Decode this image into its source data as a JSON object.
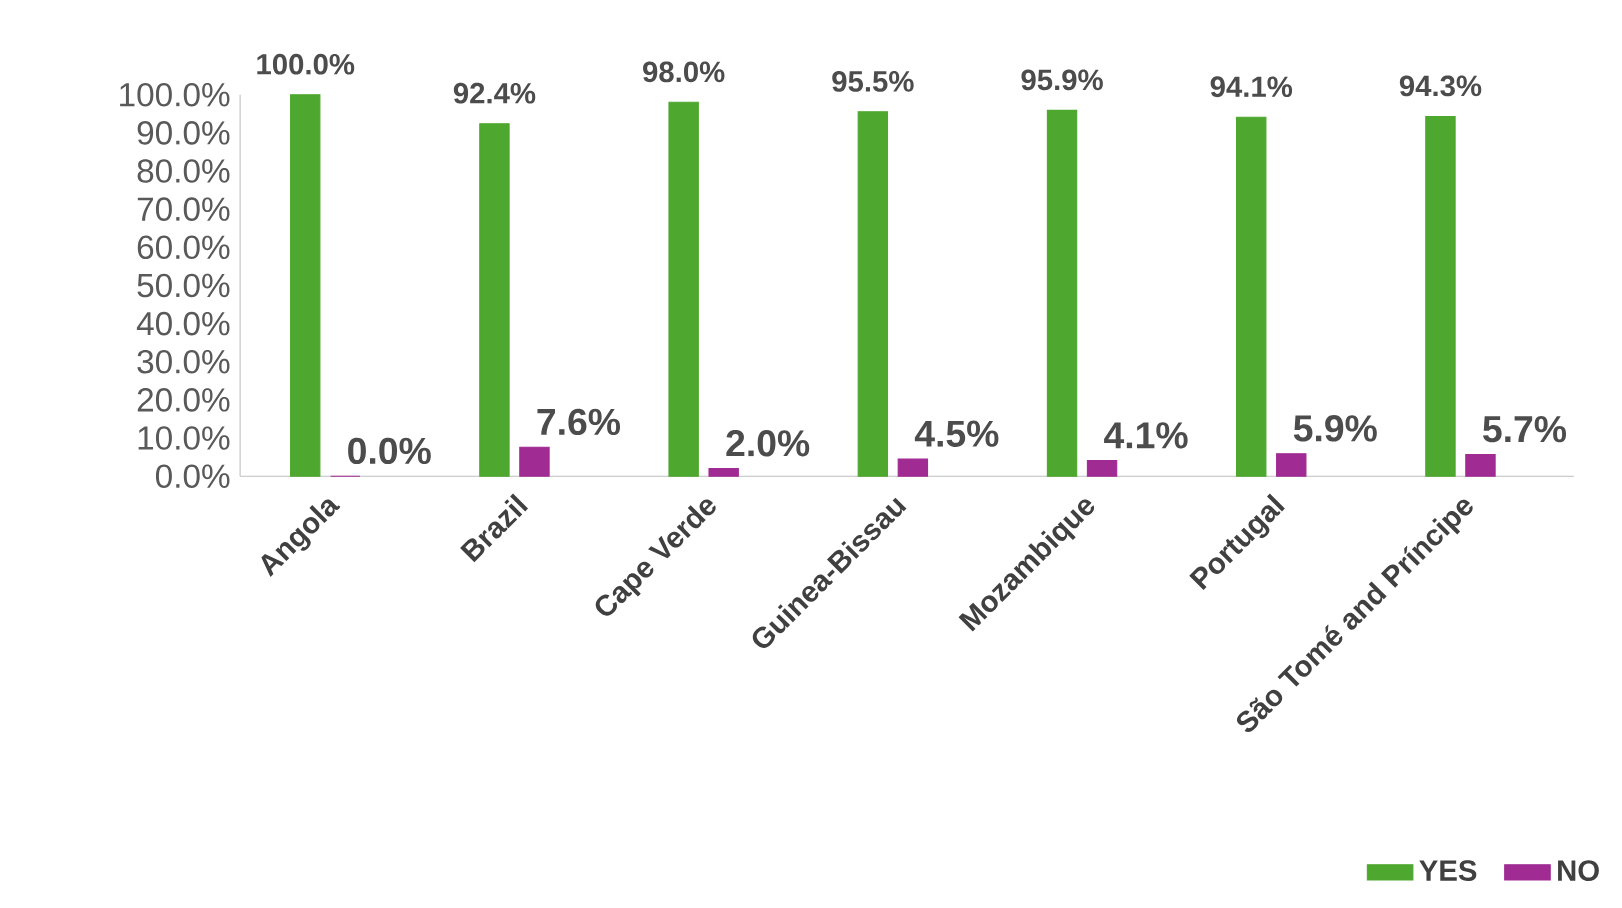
{
  "chart_data": {
    "type": "bar",
    "categories": [
      "Angola",
      "Brazil",
      "Cape Verde",
      "Guinea-Bissau",
      "Mozambique",
      "Portugal",
      "São Tomé and Príncipe"
    ],
    "series": [
      {
        "name": "YES",
        "color": "#4ea72e",
        "values": [
          100,
          92.4,
          98,
          95.5,
          95.9,
          94.1,
          94.3
        ],
        "value_labels": [
          "100.0%",
          "92.4%",
          "98.0%",
          "95.5%",
          "95.9%",
          "94.1%",
          "94.3%"
        ]
      },
      {
        "name": "NO",
        "color": "#a02b93",
        "values": [
          0,
          7.6,
          2,
          4.5,
          4.1,
          5.9,
          5.7
        ],
        "value_labels": [
          "0.0%",
          "7.6%",
          "2.0%",
          "4.5%",
          "4.1%",
          "5.9%",
          "5.7%"
        ]
      }
    ],
    "ylim": [
      0,
      100
    ],
    "yticks": [
      {
        "value": 0,
        "label": "0.0%"
      },
      {
        "value": 10,
        "label": "10.0%"
      },
      {
        "value": 20,
        "label": "20.0%"
      },
      {
        "value": 30,
        "label": "30.0%"
      },
      {
        "value": 40,
        "label": "40.0%"
      },
      {
        "value": 50,
        "label": "50.0%"
      },
      {
        "value": 60,
        "label": "60.0%"
      },
      {
        "value": 70,
        "label": "70.0%"
      },
      {
        "value": 80,
        "label": "80.0%"
      },
      {
        "value": 90,
        "label": "90.0%"
      },
      {
        "value": 100,
        "label": "100.0%"
      }
    ],
    "legend": "bottom right"
  }
}
